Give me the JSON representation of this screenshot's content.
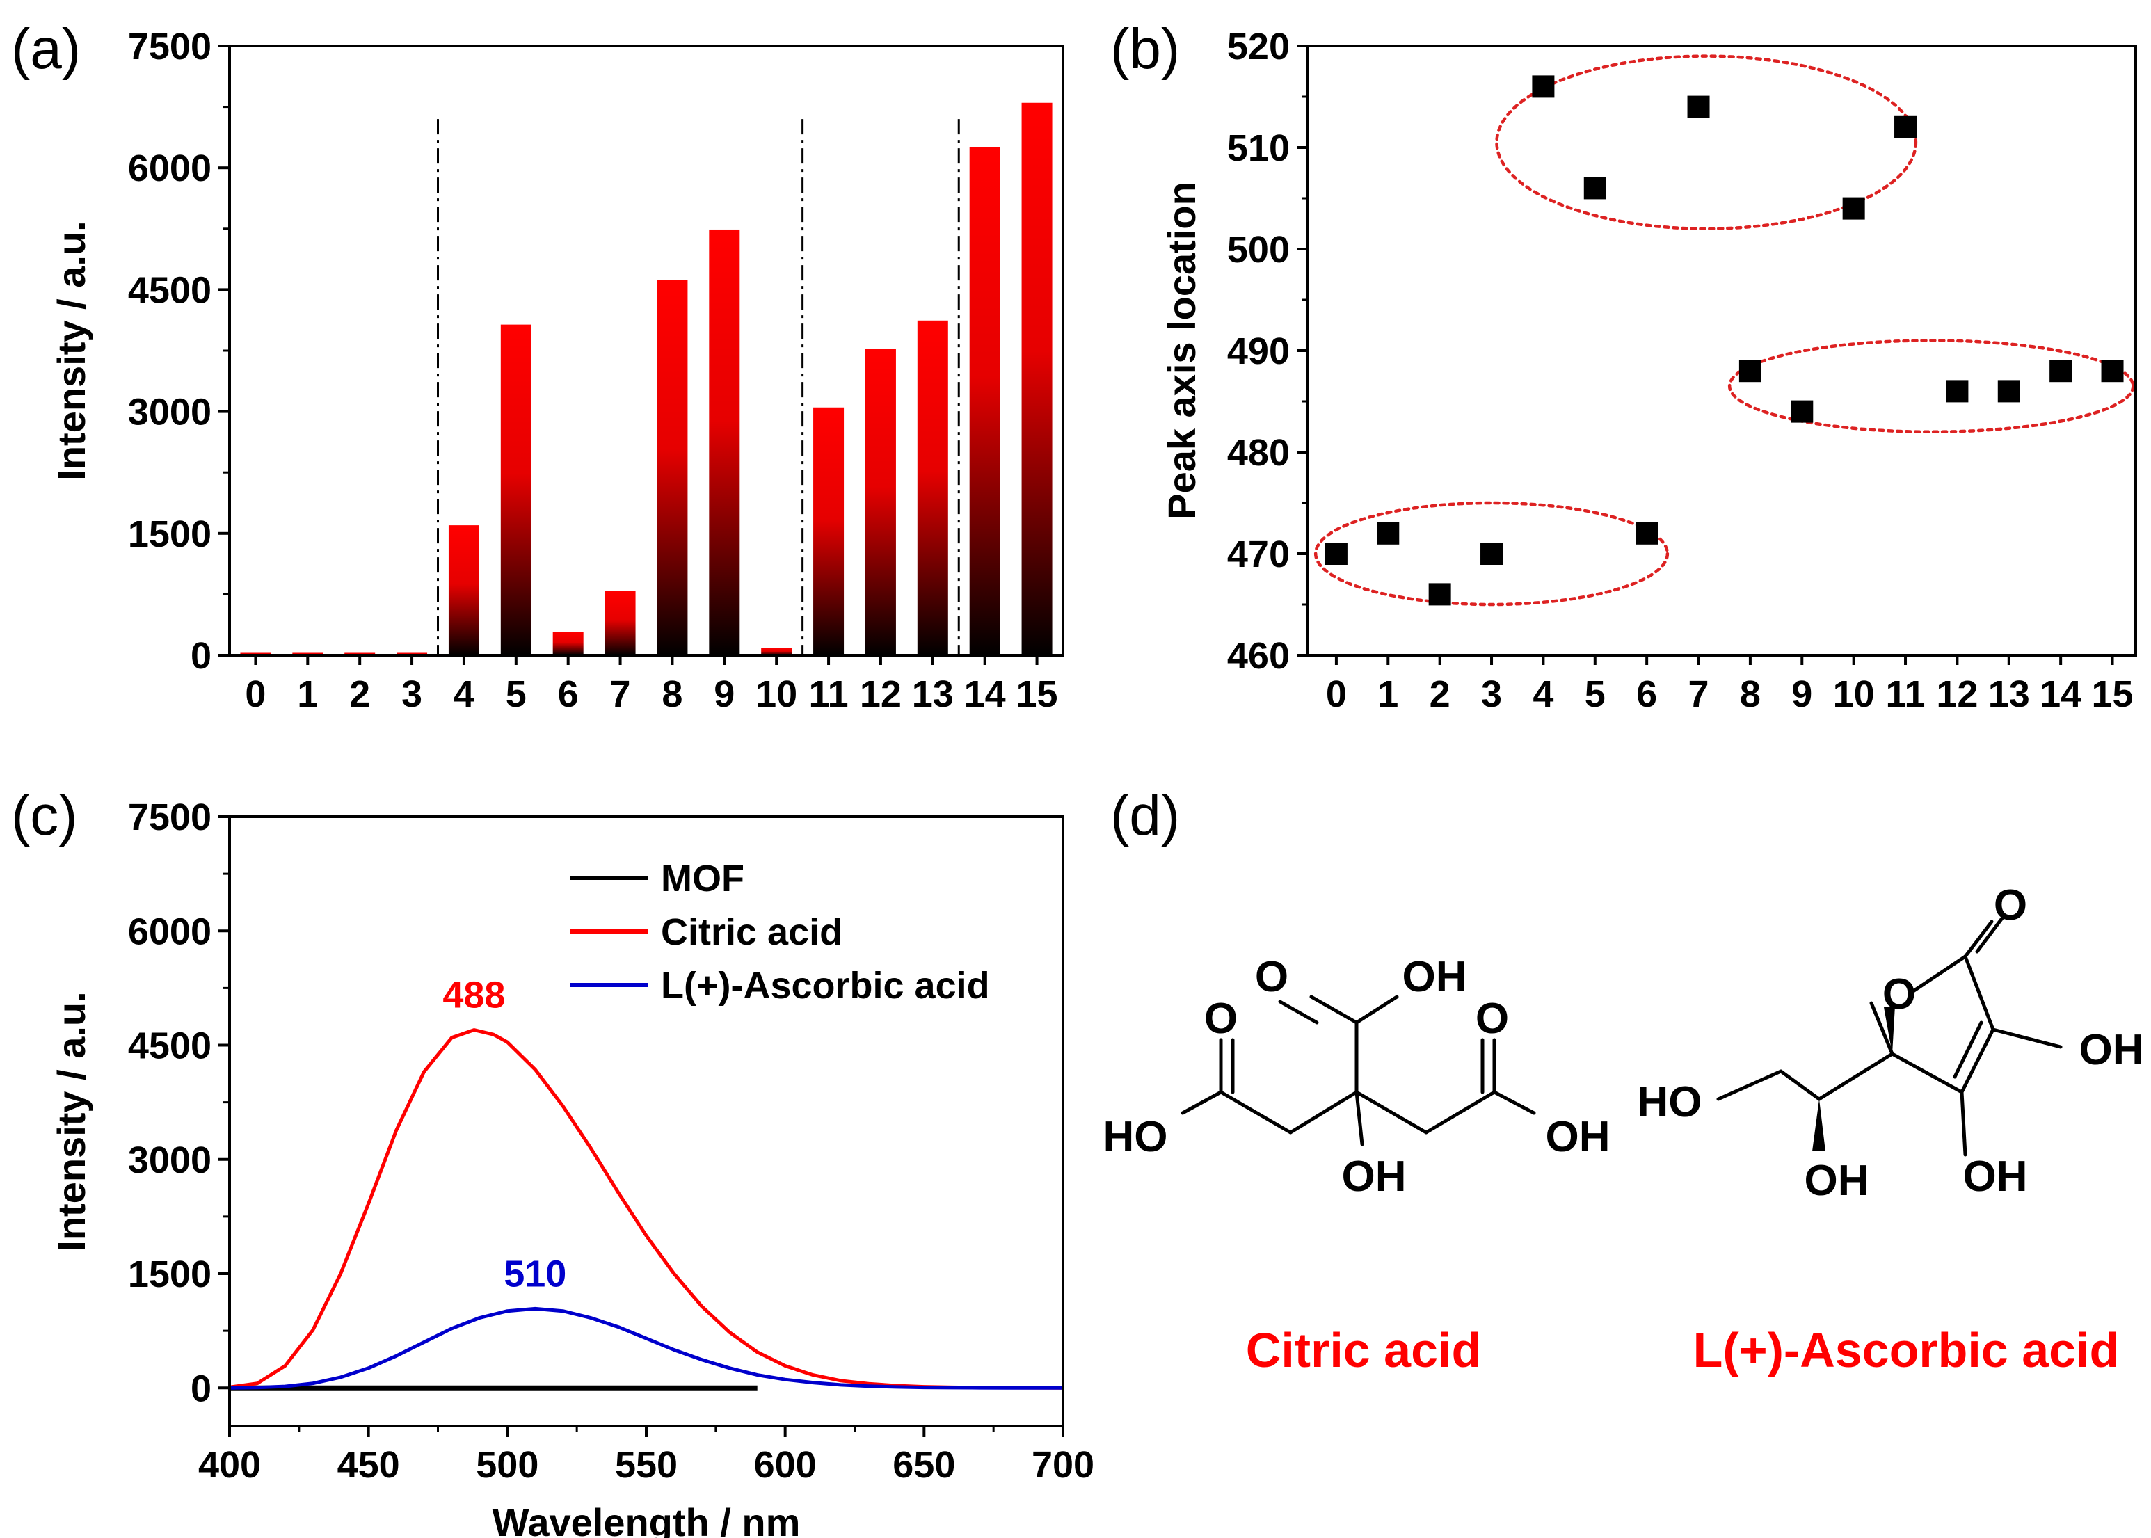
{
  "panels": {
    "a": {
      "label": "(a)"
    },
    "b": {
      "label": "(b)"
    },
    "c": {
      "label": "(c)"
    },
    "d": {
      "label": "(d)",
      "captions": [
        "Citric acid",
        "L(+)-Ascorbic acid"
      ],
      "atom_labels": {
        "citric": [
          "O",
          "OH",
          "O",
          "O",
          "HO",
          "OH",
          "OH"
        ],
        "ascorbic": [
          "O",
          "O",
          "OH",
          "HO",
          "OH",
          "OH"
        ]
      }
    }
  },
  "colors": {
    "red": "#ff0000",
    "blue": "#0000cc",
    "black": "#000000",
    "ellipse": "#dd2222"
  },
  "chart_data": [
    {
      "panel": "a",
      "type": "bar",
      "categories": [
        "0",
        "1",
        "2",
        "3",
        "4",
        "5",
        "6",
        "7",
        "8",
        "9",
        "10",
        "11",
        "12",
        "13",
        "14",
        "15"
      ],
      "values": [
        30,
        30,
        30,
        30,
        1600,
        4070,
        290,
        790,
        4620,
        5240,
        90,
        3050,
        3770,
        4120,
        6250,
        6800
      ],
      "title": "",
      "xlabel": "",
      "ylabel": "Intensity / a.u.",
      "ylim": [
        0,
        7500
      ],
      "yticks": [
        "0",
        "1500",
        "3000",
        "4500",
        "6000",
        "7500"
      ],
      "bar_fill": "gradient red (top) to black (bottom)",
      "group_separators_after": [
        "3",
        "10",
        "13"
      ],
      "grid": false
    },
    {
      "panel": "b",
      "type": "scatter",
      "x": [
        0,
        1,
        2,
        3,
        4,
        5,
        6,
        7,
        8,
        9,
        10,
        11,
        12,
        13,
        14,
        15
      ],
      "y": [
        470,
        472,
        466,
        470,
        516,
        506,
        472,
        514,
        488,
        484,
        504,
        512,
        486,
        486,
        488,
        488
      ],
      "xticks": [
        "0",
        "1",
        "2",
        "3",
        "4",
        "5",
        "6",
        "7",
        "8",
        "9",
        "10",
        "11",
        "12",
        "13",
        "14",
        "15"
      ],
      "ylabel": "Peak axis location",
      "xlabel": "",
      "ylim": [
        460,
        520
      ],
      "yticks": [
        "460",
        "470",
        "480",
        "490",
        "500",
        "510",
        "520"
      ],
      "marker": "square",
      "cluster_ellipses": [
        {
          "x_range": [
            -0.4,
            6.4
          ],
          "y_range": [
            465,
            475
          ]
        },
        {
          "x_range": [
            3.1,
            11.2
          ],
          "y_range": [
            502,
            519
          ]
        },
        {
          "x_range": [
            7.6,
            15.4
          ],
          "y_range": [
            482,
            491
          ]
        }
      ],
      "grid": false
    },
    {
      "panel": "c",
      "type": "line",
      "xlabel": "Wavelength / nm",
      "ylabel": "Intensity / a.u.",
      "xlim": [
        400,
        700
      ],
      "ylim": [
        -500,
        7500
      ],
      "xticks": [
        "400",
        "450",
        "500",
        "550",
        "600",
        "650",
        "700"
      ],
      "yticks": [
        "0",
        "1500",
        "3000",
        "4500",
        "6000",
        "7500"
      ],
      "legend_position": "top-right",
      "series": [
        {
          "name": "MOF",
          "color": "#000000",
          "x": [
            400,
            590
          ],
          "y": [
            0,
            0
          ]
        },
        {
          "name": "Citric acid",
          "color": "#ff0000",
          "x": [
            400,
            410,
            420,
            430,
            440,
            450,
            460,
            470,
            480,
            488,
            495,
            500,
            510,
            520,
            530,
            540,
            550,
            560,
            570,
            580,
            590,
            600,
            610,
            620,
            630,
            640,
            650,
            660,
            670,
            680,
            690,
            700
          ],
          "y": [
            10,
            60,
            290,
            760,
            1500,
            2420,
            3380,
            4150,
            4600,
            4700,
            4640,
            4540,
            4180,
            3700,
            3150,
            2560,
            2000,
            1500,
            1070,
            730,
            470,
            290,
            170,
            95,
            55,
            30,
            15,
            8,
            4,
            2,
            1,
            0
          ],
          "peak_label": "488"
        },
        {
          "name": "L(+)-Ascorbic acid",
          "color": "#0000cc",
          "x": [
            400,
            410,
            420,
            430,
            440,
            450,
            460,
            470,
            480,
            490,
            500,
            510,
            520,
            530,
            540,
            550,
            560,
            570,
            580,
            590,
            600,
            610,
            620,
            630,
            640,
            650,
            660,
            670,
            680,
            690,
            700
          ],
          "y": [
            0,
            5,
            20,
            60,
            140,
            260,
            420,
            600,
            780,
            920,
            1010,
            1040,
            1010,
            920,
            800,
            650,
            500,
            370,
            260,
            170,
            110,
            70,
            40,
            22,
            12,
            6,
            3,
            1,
            0,
            0,
            0
          ],
          "peak_label": "510"
        }
      ],
      "grid": false
    }
  ]
}
